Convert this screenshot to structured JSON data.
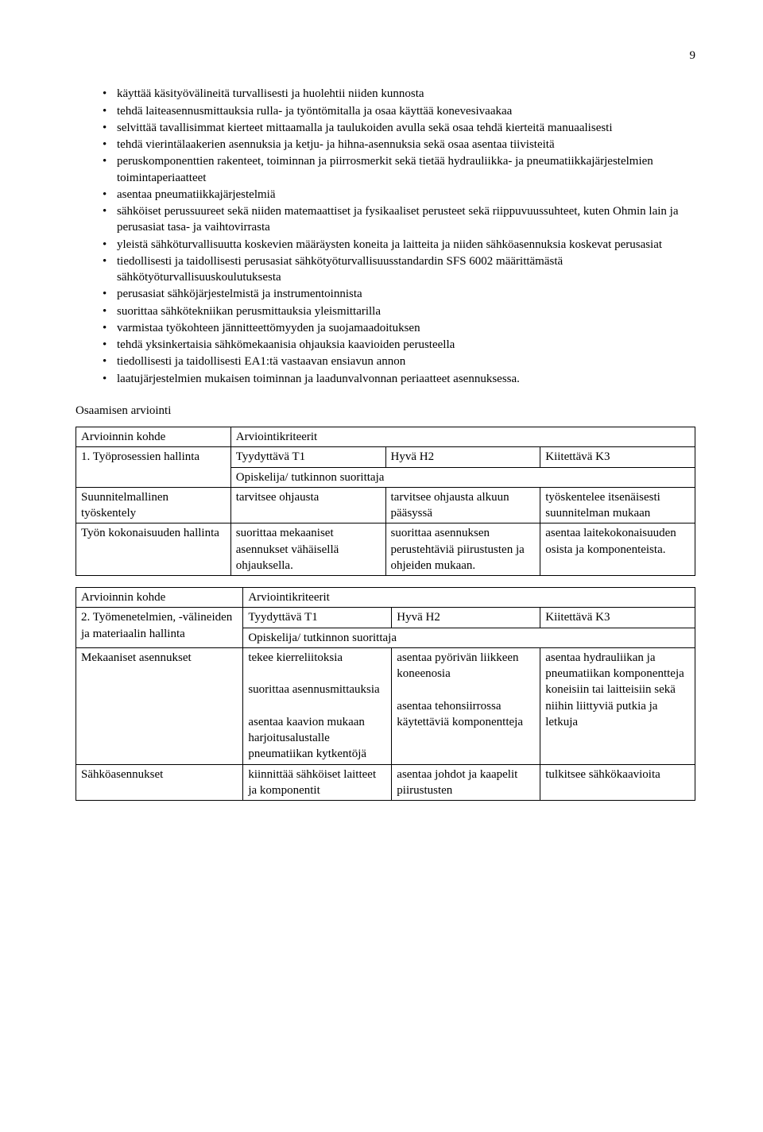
{
  "page_number": "9",
  "bullets": [
    "käyttää käsityövälineitä turvallisesti ja huolehtii niiden kunnosta",
    "tehdä laiteasennusmittauksia rulla- ja työntömitalla ja osaa käyttää konevesivaakaa",
    "selvittää tavallisimmat kierteet mittaamalla ja taulukoiden avulla sekä osaa tehdä kierteitä manuaalisesti",
    "tehdä vierintälaakerien asennuksia ja ketju- ja hihna-asennuksia sekä osaa asentaa tiivisteitä",
    "peruskomponenttien rakenteet, toiminnan ja piirrosmerkit sekä tietää hydrauliikka- ja pneumatiikkajärjestelmien toimintaperiaatteet",
    "asentaa pneumatiikkajärjestelmiä",
    "sähköiset perussuureet sekä niiden matemaattiset ja fysikaaliset perusteet sekä riippuvuussuhteet, kuten Ohmin lain ja perusasiat tasa- ja vaihtovirrasta",
    "yleistä sähköturvallisuutta koskevien määräysten koneita ja laitteita ja niiden sähköasennuksia koskevat perusasiat",
    "tiedollisesti ja taidollisesti perusasiat sähkötyöturvallisuusstandardin SFS 6002 määrittämästä sähkötyöturvallisuuskoulutuksesta",
    "perusasiat sähköjärjestelmistä ja instrumentoinnista",
    "suorittaa sähkötekniikan perusmittauksia yleismittarilla",
    "varmistaa työkohteen jännitteettömyyden ja suojamaadoituksen",
    "tehdä yksinkertaisia sähkömekaanisia ohjauksia kaavioiden perusteella",
    "tiedollisesti ja taidollisesti EA1:tä vastaavan ensiavun annon",
    "laatujärjestelmien mukaisen toiminnan ja laadunvalvonnan periaatteet asennuksessa."
  ],
  "assessment_heading": "Osaamisen arviointi",
  "table1": {
    "r1c1": "Arvioinnin kohde",
    "r1c2": "Arviointikriteerit",
    "r2c1": "1. Työprosessien hallinta",
    "r2c2": "Tyydyttävä T1",
    "r2c3": "Hyvä H2",
    "r2c4": "Kiitettävä K3",
    "r3c2": "Opiskelija/ tutkinnon suorittaja",
    "r4c1": "Suunnitelmallinen työskentely",
    "r4c2": "tarvitsee ohjausta",
    "r4c3": "tarvitsee ohjausta alkuun pääsyssä",
    "r4c4": "työskentelee itsenäisesti suunnitelman mukaan",
    "r5c1": "Työn kokonaisuuden hallinta",
    "r5c2": "suorittaa mekaaniset asennukset vähäisellä ohjauksella.",
    "r5c3": "suorittaa asennuksen perustehtäviä piirustusten ja ohjeiden mukaan.",
    "r5c4": "asentaa laitekokonaisuuden osista ja komponenteista."
  },
  "table2": {
    "r1c1": "Arvioinnin kohde",
    "r1c2": "Arviointikriteerit",
    "r2c1": "2. Työmenetelmien, -välineiden ja materiaalin hallinta",
    "r2c2": "Tyydyttävä T1",
    "r2c3": "Hyvä H2",
    "r2c4": "Kiitettävä K3",
    "r3c2": "Opiskelija/ tutkinnon suorittaja",
    "r4c1": "Mekaaniset asennukset",
    "r4c2": "tekee kierreliitoksia\n\nsuorittaa asennusmittauksia\n\nasentaa kaavion mukaan harjoitusalustalle pneumatiikan kytkentöjä",
    "r4c3": "asentaa pyörivän liikkeen koneenosia\n\nasentaa tehonsiirrossa käytettäviä komponentteja",
    "r4c4": "asentaa hydrauliikan ja pneumatiikan komponentteja koneisiin tai laitteisiin sekä niihin liittyviä putkia ja letkuja",
    "r5c1": "Sähköasennukset",
    "r5c2": "kiinnittää sähköiset laitteet ja komponentit",
    "r5c3": "asentaa johdot ja kaapelit piirustusten",
    "r5c4": "tulkitsee sähkökaavioita"
  }
}
